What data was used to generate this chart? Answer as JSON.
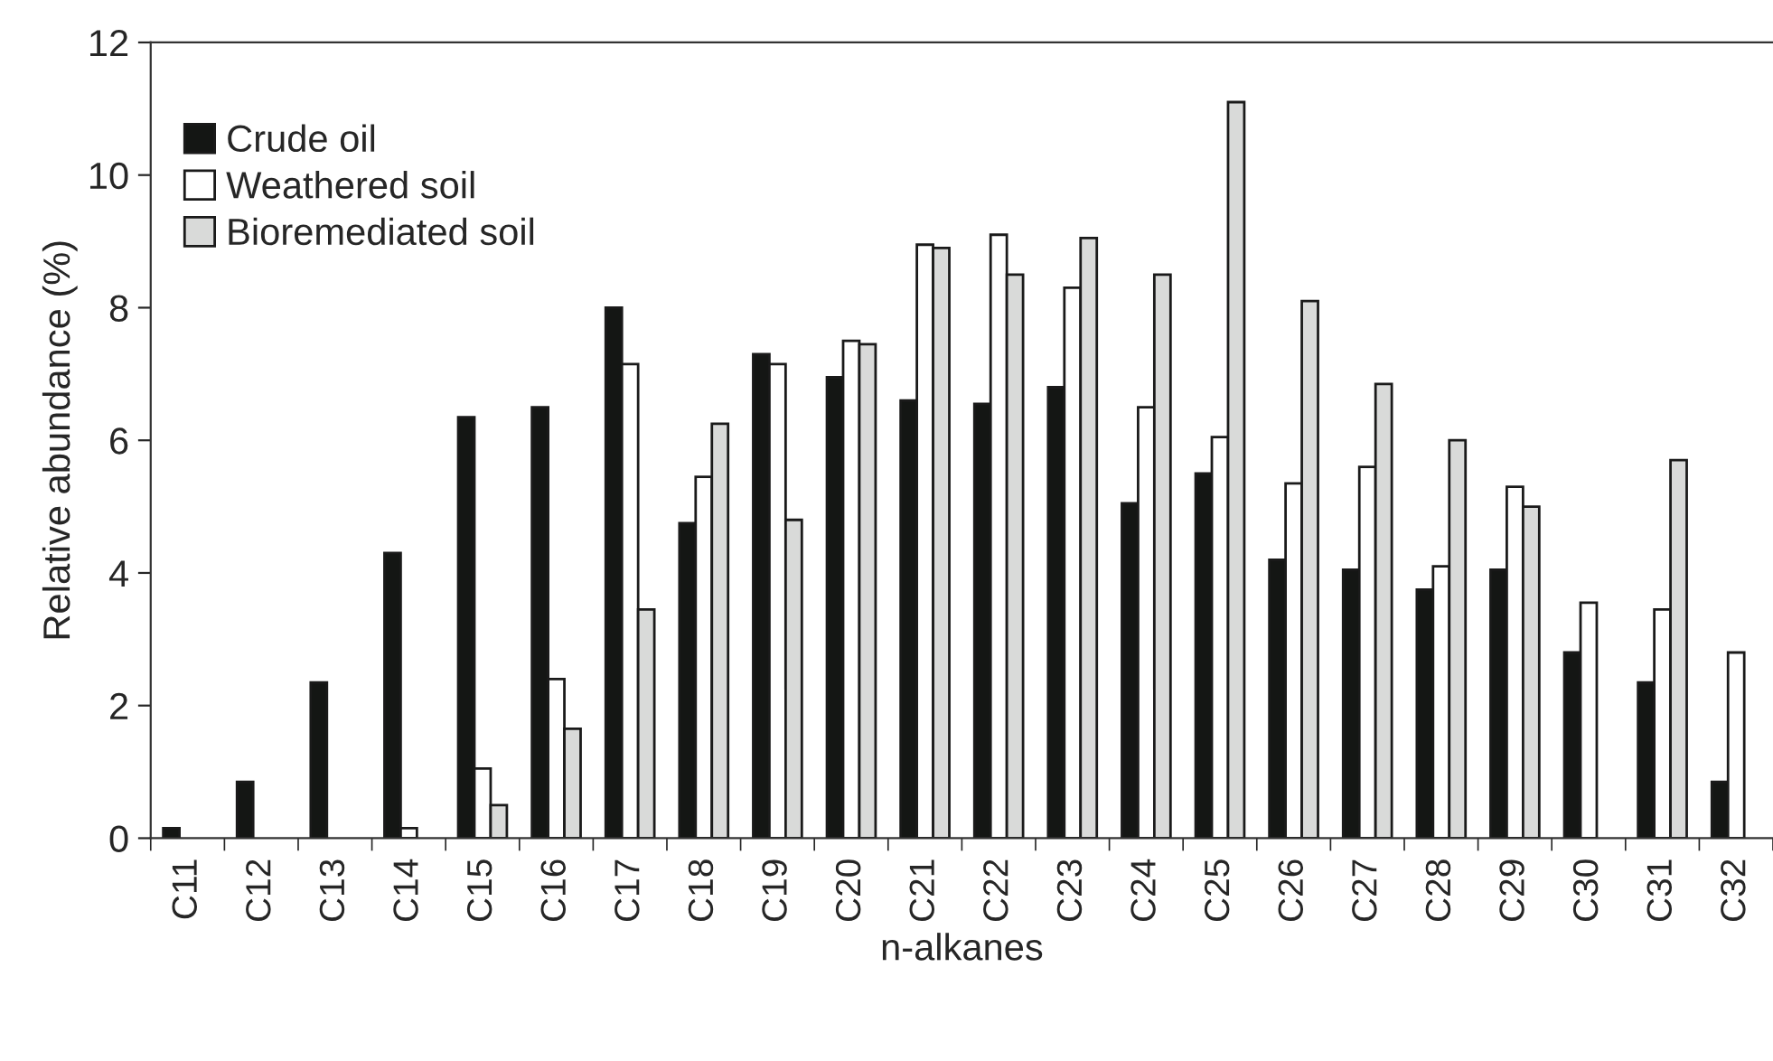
{
  "chart_data": {
    "type": "bar",
    "xlabel": "n-alkanes",
    "ylabel": "Relative abundance (%)",
    "categories": [
      "C11",
      "C12",
      "C13",
      "C14",
      "C15",
      "C16",
      "C17",
      "C18",
      "C19",
      "C20",
      "C21",
      "C22",
      "C23",
      "C24",
      "C25",
      "C26",
      "C27",
      "C28",
      "C29",
      "C30",
      "C31",
      "C32"
    ],
    "series": [
      {
        "name": "Crude oil",
        "color": "#141614",
        "values": [
          0.15,
          0.85,
          2.35,
          4.3,
          6.35,
          6.5,
          8.0,
          4.75,
          7.3,
          6.95,
          6.6,
          6.55,
          6.8,
          5.05,
          5.5,
          4.2,
          4.05,
          3.75,
          4.05,
          2.8,
          2.35,
          0.85
        ]
      },
      {
        "name": "Weathered soil",
        "color": "#ffffff",
        "values": [
          null,
          null,
          null,
          0.15,
          1.05,
          2.4,
          7.15,
          5.45,
          7.15,
          7.5,
          8.95,
          9.1,
          8.3,
          6.5,
          6.05,
          5.35,
          5.6,
          4.1,
          5.3,
          3.55,
          3.45,
          2.8
        ]
      },
      {
        "name": "Bioremediated soil",
        "color": "#d9dad9",
        "values": [
          null,
          null,
          null,
          null,
          0.5,
          1.65,
          3.45,
          6.25,
          4.8,
          7.45,
          8.9,
          8.5,
          9.05,
          8.5,
          11.1,
          8.1,
          6.85,
          6.0,
          5.0,
          null,
          5.7,
          null
        ]
      }
    ],
    "ylim": [
      0,
      12
    ],
    "yticks": [
      0,
      2,
      4,
      6,
      8,
      10,
      12
    ],
    "grid": false,
    "legend": "top left"
  }
}
